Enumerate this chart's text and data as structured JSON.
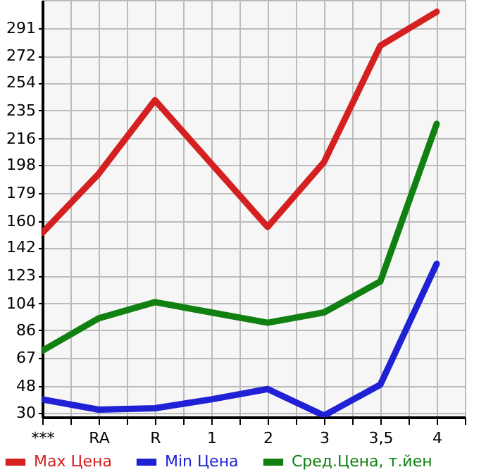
{
  "chart_data": {
    "type": "line",
    "categories": [
      "***",
      "RA",
      "R",
      "1",
      "2",
      "3",
      "3,5",
      "4"
    ],
    "series": [
      {
        "name": "Max Цена",
        "color": "#d42020",
        "values": [
          152,
          192,
          242,
          199,
          156,
          200,
          279,
          302
        ]
      },
      {
        "name": "Min Цена",
        "color": "#2020d4",
        "values": [
          39,
          32,
          33,
          39,
          46,
          28,
          49,
          131
        ]
      },
      {
        "name": "Сред.Цена, т.йен",
        "color": "#108010",
        "values": [
          72,
          94,
          105,
          98,
          91,
          98,
          119,
          226
        ]
      }
    ],
    "ylim": [
      27,
      310
    ],
    "yticks": [
      30,
      48,
      67,
      86,
      104,
      123,
      142,
      160,
      179,
      198,
      216,
      235,
      254,
      272,
      291
    ],
    "grid": true,
    "legend": "bottom",
    "marker": "none",
    "line_style": "solid"
  }
}
